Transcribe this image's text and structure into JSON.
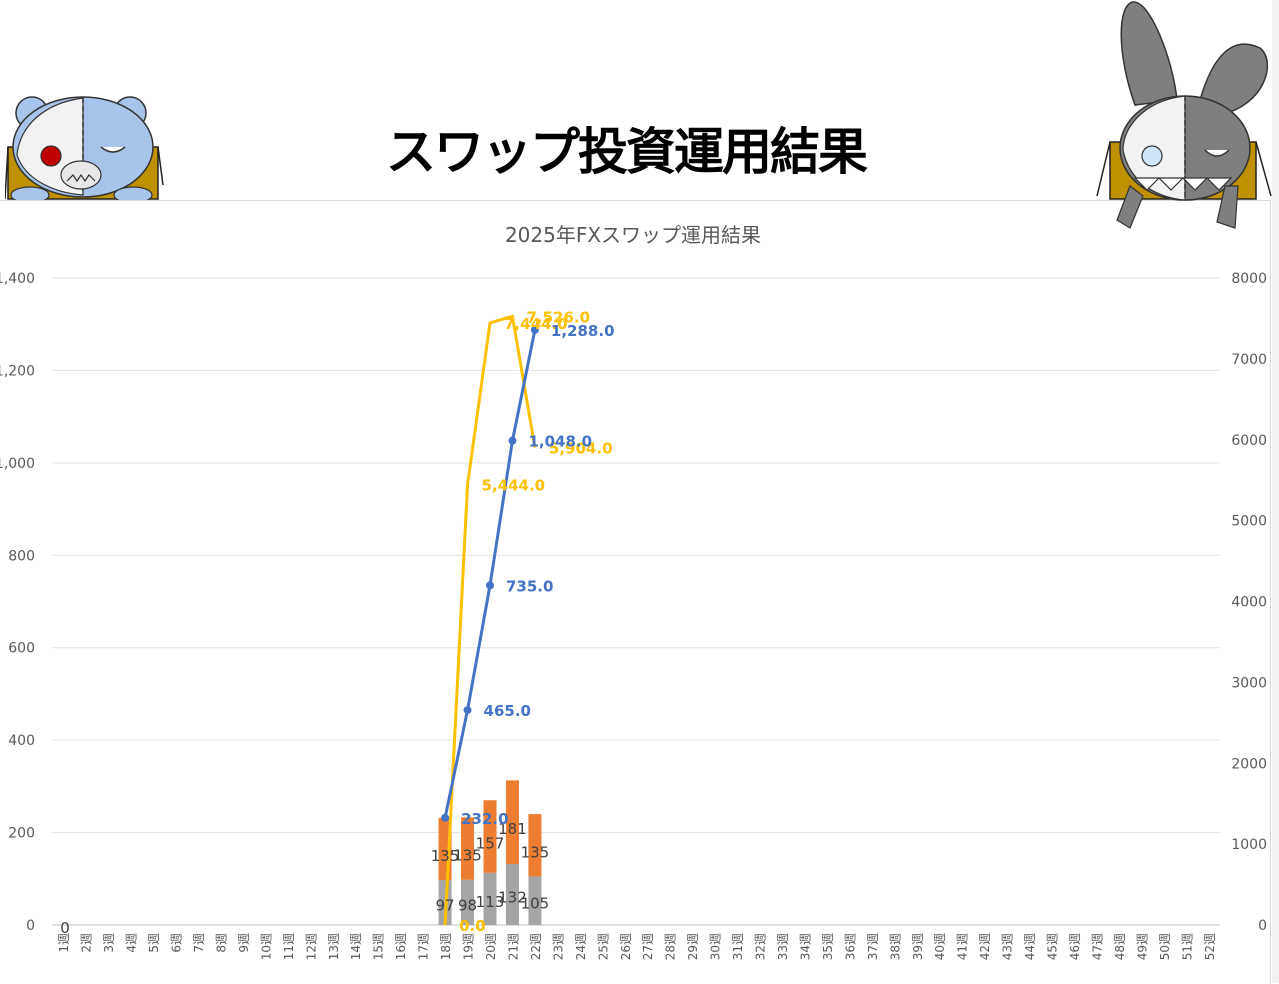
{
  "banner": {
    "title": "スワップ投資運用結果"
  },
  "mascots": [
    {
      "name": "bear-mascot",
      "description_icon": "bear-icon"
    },
    {
      "name": "rabbit-mascot",
      "description_icon": "rabbit-icon"
    }
  ],
  "colors": {
    "cumulative": "#4472C4",
    "weekly_total": "#FFC000",
    "bar_upper": "#ED7D31",
    "bar_lower": "#A5A5A5",
    "mascot_box": "#BF9000"
  },
  "chart_data": {
    "type": "bar",
    "title": "2025年FXスワップ運用結果",
    "categories": [
      "1週",
      "2週",
      "3週",
      "4週",
      "5週",
      "6週",
      "7週",
      "8週",
      "9週",
      "10週",
      "11週",
      "12週",
      "13週",
      "14週",
      "15週",
      "16週",
      "17週",
      "18週",
      "19週",
      "20週",
      "21週",
      "22週",
      "23週",
      "24週",
      "25週",
      "26週",
      "27週",
      "28週",
      "29週",
      "30週",
      "31週",
      "32週",
      "33週",
      "34週",
      "35週",
      "36週",
      "37週",
      "38週",
      "39週",
      "40週",
      "41週",
      "42週",
      "43週",
      "44週",
      "45週",
      "46週",
      "47週",
      "48週",
      "49週",
      "50週",
      "51週",
      "52週"
    ],
    "ylim": [
      0,
      1400
    ],
    "y2lim": [
      0,
      8000
    ],
    "yticks": [
      "0",
      "200",
      "400",
      "600",
      "800",
      "1,000",
      "1,200",
      "1,400"
    ],
    "y2ticks": [
      "0",
      "1000",
      "2000",
      "3000",
      "4000",
      "5000",
      "6000",
      "7000",
      "8000"
    ],
    "bars_lower": {
      "values": [
        null,
        null,
        null,
        null,
        null,
        null,
        null,
        null,
        null,
        null,
        null,
        null,
        null,
        null,
        null,
        null,
        null,
        97,
        98,
        113,
        132,
        105
      ],
      "labels": [
        null,
        null,
        null,
        null,
        null,
        null,
        null,
        null,
        null,
        null,
        null,
        null,
        null,
        null,
        null,
        null,
        null,
        "97",
        "98",
        "113",
        "132",
        "105"
      ]
    },
    "bars_upper": {
      "values": [
        null,
        null,
        null,
        null,
        null,
        null,
        null,
        null,
        null,
        null,
        null,
        null,
        null,
        null,
        null,
        null,
        null,
        135,
        135,
        157,
        181,
        135
      ],
      "labels": [
        null,
        null,
        null,
        null,
        null,
        null,
        null,
        null,
        null,
        null,
        null,
        null,
        null,
        null,
        null,
        null,
        null,
        "135",
        "135",
        "157",
        "181",
        "135"
      ]
    },
    "cumulative_line": {
      "values": [
        null,
        null,
        null,
        null,
        null,
        null,
        null,
        null,
        null,
        null,
        null,
        null,
        null,
        null,
        null,
        null,
        null,
        232,
        465,
        735,
        1048,
        1288
      ],
      "labels": [
        null,
        null,
        null,
        null,
        null,
        null,
        null,
        null,
        null,
        null,
        null,
        null,
        null,
        null,
        null,
        null,
        null,
        "232.0",
        "465.0",
        "735.0",
        "1,048.0",
        "1,288.0"
      ]
    },
    "secondary_line": {
      "values": [
        null,
        null,
        null,
        null,
        null,
        null,
        null,
        null,
        null,
        null,
        null,
        null,
        null,
        null,
        null,
        null,
        null,
        0,
        5444,
        7444,
        7526,
        5904
      ],
      "labels": [
        null,
        null,
        null,
        null,
        null,
        null,
        null,
        null,
        null,
        null,
        null,
        null,
        null,
        null,
        null,
        null,
        null,
        "0.0",
        "5,444.0",
        "7,444.0",
        "7,526.0",
        "5,904.0"
      ]
    },
    "extra_labels": [
      {
        "week_index": 0,
        "text": "0"
      }
    ]
  }
}
